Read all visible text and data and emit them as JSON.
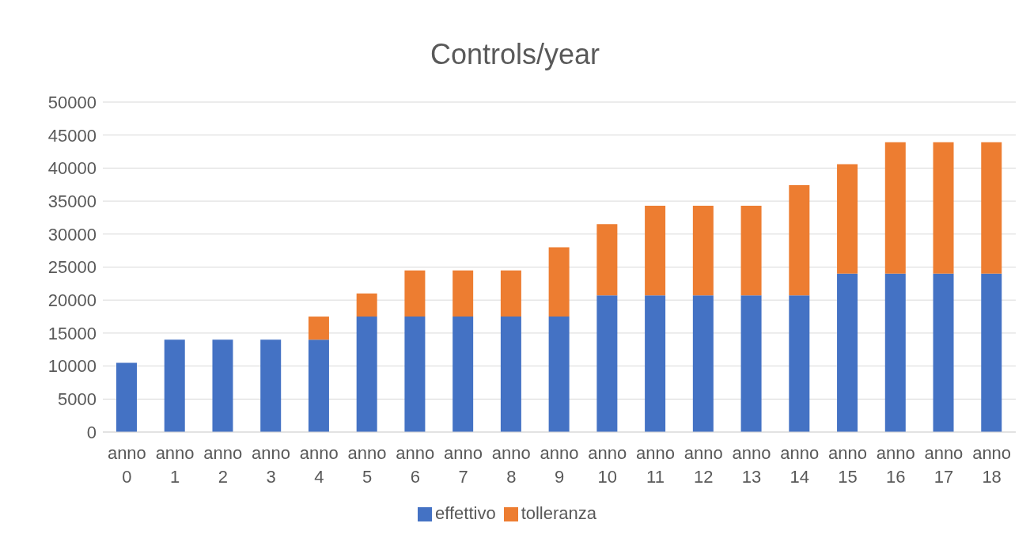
{
  "chart_data": {
    "type": "bar",
    "title": "Controls/year",
    "stacked": true,
    "categories": [
      "anno 0",
      "anno 1",
      "anno 2",
      "anno 3",
      "anno 4",
      "anno 5",
      "anno 6",
      "anno 7",
      "anno 8",
      "anno 9",
      "anno 10",
      "anno 11",
      "anno 12",
      "anno 13",
      "anno 14",
      "anno 15",
      "anno 16",
      "anno 17",
      "anno 18"
    ],
    "series": [
      {
        "name": "effettivo",
        "color": "#4472c4",
        "values": [
          10500,
          14000,
          14000,
          14000,
          14000,
          17500,
          17500,
          17500,
          17500,
          17500,
          20700,
          20700,
          20700,
          20700,
          20700,
          24000,
          24000,
          24000,
          24000
        ]
      },
      {
        "name": "tolleranza",
        "color": "#ed7d31",
        "values": [
          0,
          0,
          0,
          0,
          3500,
          3500,
          7000,
          7000,
          7000,
          10500,
          10800,
          13600,
          13600,
          13600,
          16700,
          16600,
          19900,
          19900,
          19900
        ]
      }
    ],
    "ylim": [
      0,
      50000
    ],
    "yticks": [
      0,
      5000,
      10000,
      15000,
      20000,
      25000,
      30000,
      35000,
      40000,
      45000,
      50000
    ],
    "grid": "y",
    "legend": "bottom"
  }
}
